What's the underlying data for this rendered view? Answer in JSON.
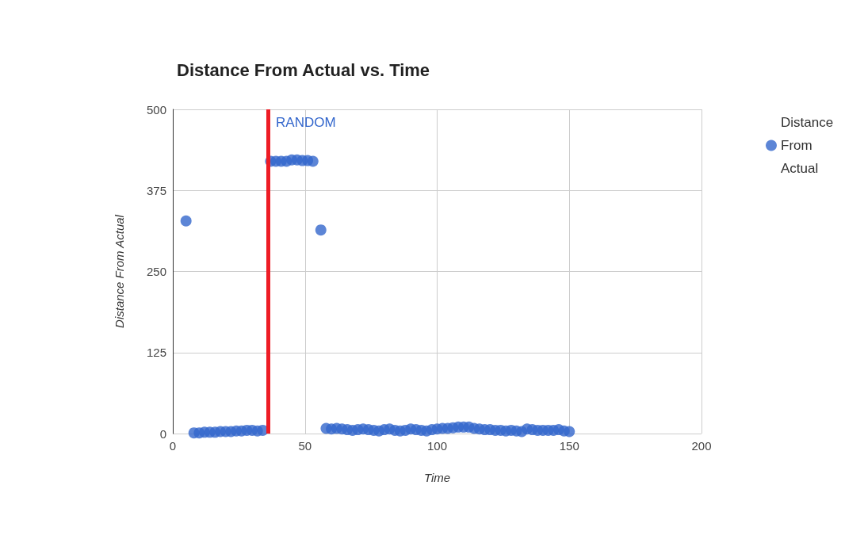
{
  "chart_data": {
    "type": "scatter",
    "title": "Distance From Actual vs. Time",
    "xlabel": "Time",
    "ylabel": "Distance From Actual",
    "series": [
      {
        "name": "Distance From Actual",
        "color": "#3366cc",
        "x": [
          5,
          8,
          10,
          12,
          14,
          16,
          18,
          20,
          22,
          24,
          26,
          28,
          30,
          32,
          34,
          37,
          39,
          41,
          43,
          45,
          47,
          49,
          51,
          53,
          56,
          58,
          60,
          62,
          64,
          66,
          68,
          70,
          72,
          74,
          76,
          78,
          80,
          82,
          84,
          86,
          88,
          90,
          92,
          94,
          96,
          98,
          100,
          102,
          104,
          106,
          108,
          110,
          112,
          114,
          116,
          118,
          120,
          122,
          124,
          126,
          128,
          130,
          132,
          134,
          136,
          138,
          140,
          142,
          144,
          146,
          148,
          150
        ],
        "values": [
          328,
          1,
          1,
          2,
          2,
          2,
          3,
          3,
          3,
          4,
          4,
          5,
          5,
          4,
          5,
          420,
          420,
          420,
          420,
          422,
          422,
          421,
          421,
          420,
          314,
          8,
          7,
          8,
          7,
          6,
          5,
          6,
          7,
          6,
          5,
          4,
          6,
          7,
          5,
          4,
          5,
          7,
          6,
          5,
          4,
          6,
          7,
          8,
          8,
          9,
          10,
          10,
          10,
          8,
          7,
          6,
          6,
          5,
          5,
          4,
          5,
          4,
          3,
          7,
          6,
          5,
          5,
          5,
          5,
          6,
          4,
          3
        ]
      }
    ],
    "xlim": [
      0,
      200
    ],
    "xticks": [
      0,
      50,
      100,
      150,
      200
    ],
    "ylim": [
      0,
      500
    ],
    "yticks": [
      0,
      125,
      250,
      375,
      500
    ],
    "grid": true,
    "legend": "top right",
    "marker": "circle",
    "ref_lines": [
      {
        "axis": "x",
        "value": 36,
        "label": "RANDOM",
        "color": "#ee1c25"
      }
    ]
  }
}
